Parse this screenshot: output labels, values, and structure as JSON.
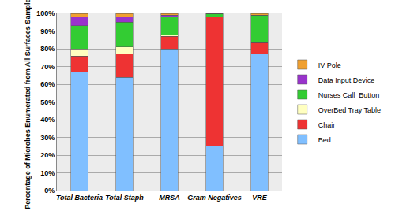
{
  "chart_data": {
    "type": "bar",
    "stacked": true,
    "ylabel": "Percentage of Microbes Enumerated from All Surfaces Sampled",
    "categories": [
      "Total Bacteria",
      "Total Staph",
      "MRSA",
      "Gram Negatives",
      "VRE"
    ],
    "series": [
      {
        "name": "Bed",
        "color": "#80bfff",
        "values": [
          67,
          64,
          80,
          25,
          77
        ]
      },
      {
        "name": "Chair",
        "color": "#ee3333",
        "values": [
          9,
          13,
          7,
          73,
          7
        ]
      },
      {
        "name": "OverBed Tray Table",
        "color": "#ffffc0",
        "values": [
          4,
          4,
          1,
          0,
          0
        ]
      },
      {
        "name": "Nurses Call  Button",
        "color": "#33cc33",
        "values": [
          13,
          14,
          10,
          2,
          15
        ]
      },
      {
        "name": "Data Input Device",
        "color": "#9933cc",
        "values": [
          5,
          3,
          1,
          0,
          0
        ]
      },
      {
        "name": "IV Pole",
        "color": "#f0a030",
        "values": [
          2,
          2,
          1,
          0,
          1
        ]
      }
    ],
    "ylim": [
      0,
      100
    ],
    "yticks": [
      {
        "value": 0,
        "label": "0%"
      },
      {
        "value": 10,
        "label": "10%"
      },
      {
        "value": 20,
        "label": "20%"
      },
      {
        "value": 30,
        "label": "30%"
      },
      {
        "value": 40,
        "label": "40%"
      },
      {
        "value": 50,
        "label": "50%"
      },
      {
        "value": 60,
        "label": "60%"
      },
      {
        "value": 70,
        "label": "70%"
      },
      {
        "value": 80,
        "label": "80%"
      },
      {
        "value": 90,
        "label": "90%"
      },
      {
        "value": 100,
        "label": "100%"
      }
    ],
    "grid": true,
    "legend": "right"
  }
}
